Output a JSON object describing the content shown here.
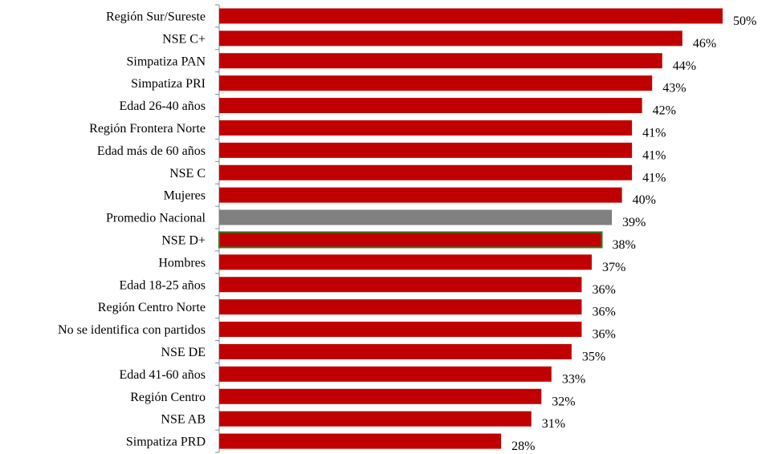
{
  "chart_data": {
    "type": "bar",
    "orientation": "horizontal",
    "categories": [
      "Región Sur/Sureste",
      "NSE C+",
      "Simpatiza PAN",
      "Simpatiza PRI",
      "Edad 26-40 años",
      "Región Frontera Norte",
      "Edad más de 60 años",
      "NSE C",
      "Mujeres",
      "Promedio Nacional",
      "NSE D+",
      "Hombres",
      "Edad 18-25 años",
      "Región Centro Norte",
      "No se identifica con partidos",
      "NSE DE",
      "Edad 41-60 años",
      "Región Centro",
      "NSE AB",
      "Simpatiza PRD"
    ],
    "values": [
      50,
      46,
      44,
      43,
      42,
      41,
      41,
      41,
      40,
      39,
      38,
      37,
      36,
      36,
      36,
      35,
      33,
      32,
      31,
      28
    ],
    "value_labels": [
      "50%",
      "46%",
      "44%",
      "43%",
      "42%",
      "41%",
      "41%",
      "41%",
      "40%",
      "39%",
      "38%",
      "37%",
      "36%",
      "36%",
      "36%",
      "35%",
      "33%",
      "32%",
      "31%",
      "28%"
    ],
    "xlim": [
      0,
      50
    ],
    "bar_color": "#C00000",
    "highlight_category": "Promedio Nacional",
    "highlight_color": "#808080",
    "outlined_category": "NSE D+",
    "outline_color": "#2E7D1E",
    "axis_color": "#888888",
    "grid": false,
    "legend": "none",
    "title": "",
    "xlabel": "",
    "ylabel": ""
  }
}
